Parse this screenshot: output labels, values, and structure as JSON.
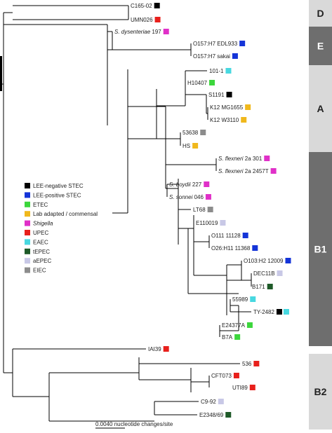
{
  "leaves": [
    {
      "id": "c165",
      "label": "C165-02",
      "italic": "",
      "color": "#000000"
    },
    {
      "id": "umn026",
      "label": "UMN026",
      "italic": "",
      "color": "#e8201c"
    },
    {
      "id": "sdys",
      "label": " 197",
      "italic": "S. dysenteriae",
      "color": "#e030c8"
    },
    {
      "id": "edl933",
      "label": "O157:H7 EDL933",
      "italic": "",
      "color": "#1434d8"
    },
    {
      "id": "sakai",
      "label": "O157:H7 sakai",
      "italic": "",
      "color": "#1434d8"
    },
    {
      "id": "l1011",
      "label": "101-1",
      "italic": "",
      "color": "#48d8e0"
    },
    {
      "id": "h10407",
      "label": "H10407",
      "italic": "",
      "color": "#3cd63c"
    },
    {
      "id": "s1191",
      "label": "S1191",
      "italic": "",
      "color": "#000000"
    },
    {
      "id": "mg1655",
      "label": "K12 MG1655",
      "italic": "",
      "color": "#f0b81c"
    },
    {
      "id": "w3110",
      "label": "K12 W3110",
      "italic": "",
      "color": "#f0b81c"
    },
    {
      "id": "l53638",
      "label": "53638",
      "italic": "",
      "color": "#8c8c8c"
    },
    {
      "id": "hs",
      "label": "HS",
      "italic": "",
      "color": "#f0b81c"
    },
    {
      "id": "sfl301",
      "label": " 2a 301",
      "italic": "S. flexneri",
      "color": "#e030c8"
    },
    {
      "id": "sfl2457",
      "label": " 2a 2457T",
      "italic": "S. flexneri",
      "color": "#e030c8"
    },
    {
      "id": "sboy",
      "label": " 227",
      "italic": "S. boydii",
      "color": "#e030c8"
    },
    {
      "id": "sson",
      "label": " 046",
      "italic": "S. sonnei",
      "color": "#e030c8"
    },
    {
      "id": "lt68",
      "label": "LT68",
      "italic": "",
      "color": "#8c8c8c"
    },
    {
      "id": "e110019",
      "label": "E110019",
      "italic": "",
      "color": "#c8c8e6"
    },
    {
      "id": "o111",
      "label": "O111 11128",
      "italic": "",
      "color": "#1434d8"
    },
    {
      "id": "o26",
      "label": "O26:H11 11368",
      "italic": "",
      "color": "#1434d8"
    },
    {
      "id": "o103",
      "label": "O103:H2 12009",
      "italic": "",
      "color": "#1434d8"
    },
    {
      "id": "dec11b",
      "label": "DEC11B",
      "italic": "",
      "color": "#c8c8e6"
    },
    {
      "id": "b171",
      "label": "B171",
      "italic": "",
      "color": "#1e5a28"
    },
    {
      "id": "l55989",
      "label": "55989",
      "italic": "",
      "color": "#48d8e0"
    },
    {
      "id": "ty2482",
      "label": "TY-2482",
      "italic": "",
      "color": "#000000",
      "color2": "#48d8e0"
    },
    {
      "id": "e24377a",
      "label": "E24377A",
      "italic": "",
      "color": "#3cd63c"
    },
    {
      "id": "b7a",
      "label": "B7A",
      "italic": "",
      "color": "#3cd63c"
    },
    {
      "id": "iai39",
      "label": "IAI39",
      "italic": "",
      "color": "#e8201c"
    },
    {
      "id": "l536",
      "label": "536",
      "italic": "",
      "color": "#e8201c"
    },
    {
      "id": "cft073",
      "label": "CFT073",
      "italic": "",
      "color": "#e8201c"
    },
    {
      "id": "uti89",
      "label": "UTI89",
      "italic": "",
      "color": "#e8201c"
    },
    {
      "id": "c992",
      "label": "C9-92",
      "italic": "",
      "color": "#c8c8e6"
    },
    {
      "id": "e2348",
      "label": "E2348/69",
      "italic": "",
      "color": "#1e5a28"
    }
  ],
  "legend": [
    {
      "label": "LEE-negative STEC",
      "italic": false,
      "color": "#000000"
    },
    {
      "label": "LEE-positive STEC",
      "italic": false,
      "color": "#1434d8"
    },
    {
      "label": "ETEC",
      "italic": false,
      "color": "#3cd63c"
    },
    {
      "label": "Lab adapted / commensal",
      "italic": false,
      "color": "#f0b81c"
    },
    {
      "label": "Shigella",
      "italic": true,
      "color": "#e030c8"
    },
    {
      "label": "UPEC",
      "italic": false,
      "color": "#e8201c"
    },
    {
      "label": "EAEC",
      "italic": false,
      "color": "#48d8e0"
    },
    {
      "label": "tEPEC",
      "italic": false,
      "color": "#1e5a28"
    },
    {
      "label": "aEPEC",
      "italic": false,
      "color": "#c8c8e6"
    },
    {
      "label": "EIEC",
      "italic": false,
      "color": "#8c8c8c"
    }
  ],
  "groups": [
    {
      "label": "D",
      "color": "#d9d9d9",
      "dark": false
    },
    {
      "label": "E",
      "color": "#6e6e6e",
      "dark": true
    },
    {
      "label": "A",
      "color": "#d9d9d9",
      "dark": false
    },
    {
      "label": "B1",
      "color": "#6e6e6e",
      "dark": true
    },
    {
      "label": "B2",
      "color": "#d9d9d9",
      "dark": false
    }
  ],
  "scale_bar": {
    "label": "0.0040 nucleotide changes/site"
  }
}
